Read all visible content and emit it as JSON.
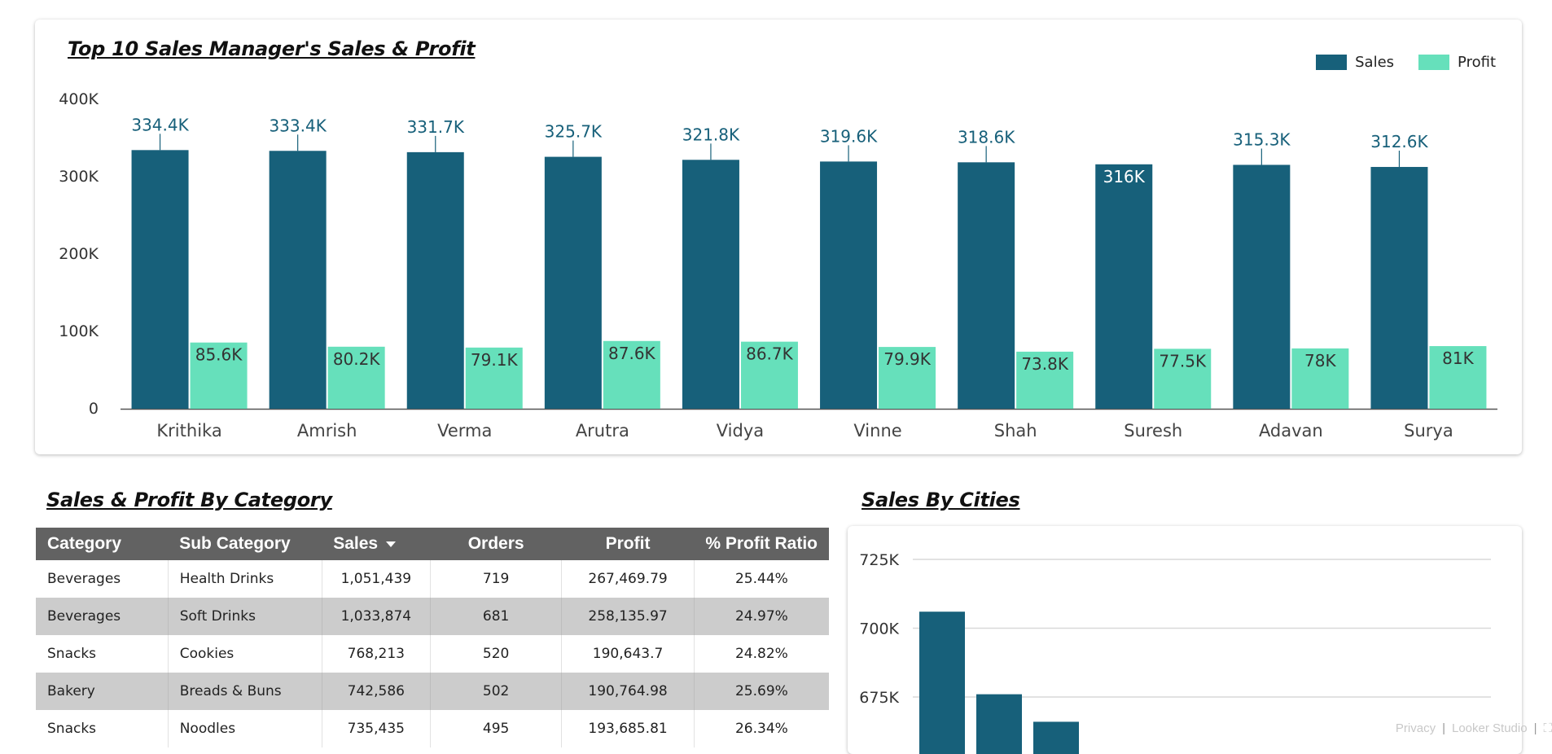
{
  "top_chart": {
    "title": "Top 10 Sales Manager's Sales & Profit",
    "legend": [
      {
        "label": "Sales",
        "color": "#17607a"
      },
      {
        "label": "Profit",
        "color": "#66e0bb"
      }
    ]
  },
  "category_section": {
    "title": "Sales & Profit By Category",
    "columns": [
      "Category",
      "Sub Category",
      "Sales",
      "Orders",
      "Profit",
      "% Profit Ratio"
    ],
    "rows": [
      [
        "Beverages",
        "Health Drinks",
        "1,051,439",
        "719",
        "267,469.79",
        "25.44%"
      ],
      [
        "Beverages",
        "Soft Drinks",
        "1,033,874",
        "681",
        "258,135.97",
        "24.97%"
      ],
      [
        "Snacks",
        "Cookies",
        "768,213",
        "520",
        "190,643.7",
        "24.82%"
      ],
      [
        "Bakery",
        "Breads & Buns",
        "742,586",
        "502",
        "190,764.98",
        "25.69%"
      ],
      [
        "Snacks",
        "Noodles",
        "735,435",
        "495",
        "193,685.81",
        "26.34%"
      ]
    ]
  },
  "city_section": {
    "title": "Sales By Cities"
  },
  "footer": {
    "privacy": "Privacy",
    "brand": "Looker Studio"
  },
  "chart_data": [
    {
      "type": "bar",
      "title": "Top 10 Sales Manager's Sales & Profit",
      "categories": [
        "Krithika",
        "Amrish",
        "Verma",
        "Arutra",
        "Vidya",
        "Vinne",
        "Shah",
        "Suresh",
        "Adavan",
        "Surya"
      ],
      "series": [
        {
          "name": "Sales",
          "color": "#17607a",
          "values": [
            334400,
            333400,
            331700,
            325700,
            321800,
            319600,
            318600,
            316000,
            315300,
            312600
          ],
          "labels": [
            "334.4K",
            "333.4K",
            "331.7K",
            "325.7K",
            "321.8K",
            "319.6K",
            "318.6K",
            "316K",
            "315.3K",
            "312.6K"
          ]
        },
        {
          "name": "Profit",
          "color": "#66e0bb",
          "values": [
            85600,
            80200,
            79100,
            87600,
            86700,
            79900,
            73800,
            77500,
            78000,
            81000
          ],
          "labels": [
            "85.6K",
            "80.2K",
            "79.1K",
            "87.6K",
            "86.7K",
            "79.9K",
            "73.8K",
            "77.5K",
            "78K",
            "81K"
          ]
        }
      ],
      "yticks": [
        "0",
        "100K",
        "200K",
        "300K",
        "400K"
      ],
      "ylim": [
        0,
        400000
      ],
      "xlabel": "",
      "ylabel": "",
      "legend": "top-right"
    },
    {
      "type": "bar",
      "title": "Sales By Cities",
      "categories": [
        "",
        "",
        ""
      ],
      "values": [
        706000,
        676000,
        666000
      ],
      "color": "#17607a",
      "yticks": [
        {
          "label": "675K",
          "value": 675000
        },
        {
          "label": "700K",
          "value": 700000
        },
        {
          "label": "725K",
          "value": 725000
        }
      ],
      "ylim": [
        650000,
        725000
      ],
      "grid": true
    }
  ]
}
